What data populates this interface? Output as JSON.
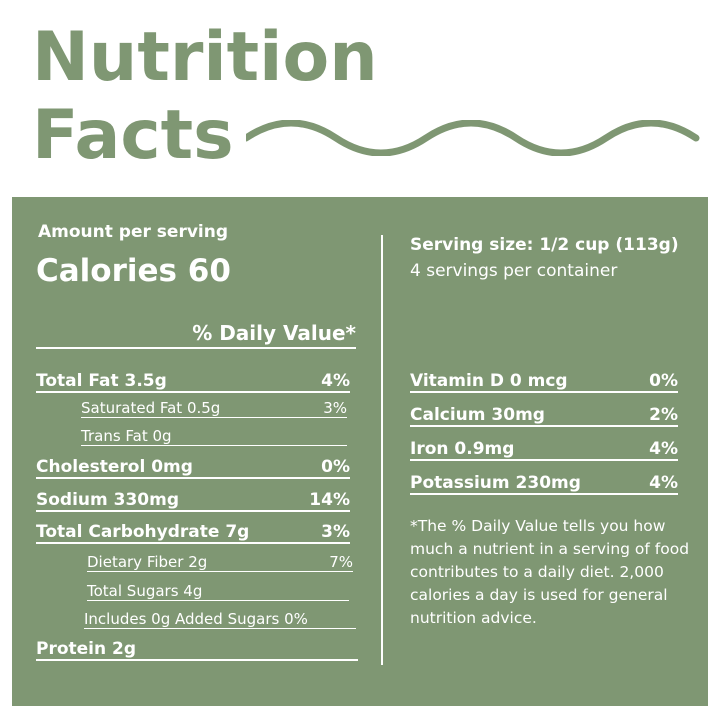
{
  "title": {
    "line1": "Nutrition",
    "line2": "Facts"
  },
  "colors": {
    "accent": "#7f9773",
    "text_on_panel": "#ffffff"
  },
  "panel": {
    "amount_per_serving": "Amount per serving",
    "calories": "Calories 60",
    "serving_size": "Serving size: 1/2 cup (113g)",
    "servings_per_container": "4 servings per container",
    "daily_value_header": "% Daily Value*",
    "left_rows": [
      {
        "label": "Total Fat 3.5g",
        "value": "4%"
      },
      {
        "label": "Saturated Fat 0.5g",
        "value": "3%"
      },
      {
        "label": "Trans Fat 0g",
        "value": ""
      },
      {
        "label": "Cholesterol 0mg",
        "value": "0%"
      },
      {
        "label": "Sodium 330mg",
        "value": "14%"
      },
      {
        "label": "Total Carbohydrate  7g",
        "value": "3%"
      },
      {
        "label": "Dietary Fiber 2g",
        "value": "7%"
      },
      {
        "label": "Total Sugars 4g",
        "value": ""
      },
      {
        "label": "Includes 0g Added Sugars 0%",
        "value": ""
      },
      {
        "label": "Protein 2g",
        "value": ""
      }
    ],
    "right_rows": [
      {
        "label": "Vitamin D 0 mcg",
        "value": "0%"
      },
      {
        "label": "Calcium 30mg",
        "value": "2%"
      },
      {
        "label": "Iron 0.9mg",
        "value": "4%"
      },
      {
        "label": "Potassium 230mg",
        "value": "4%"
      }
    ],
    "footnote": "*The % Daily Value tells you how much a nutrient in a serving of food contributes to a daily diet. 2,000 calories a day is used for general nutrition advice."
  }
}
